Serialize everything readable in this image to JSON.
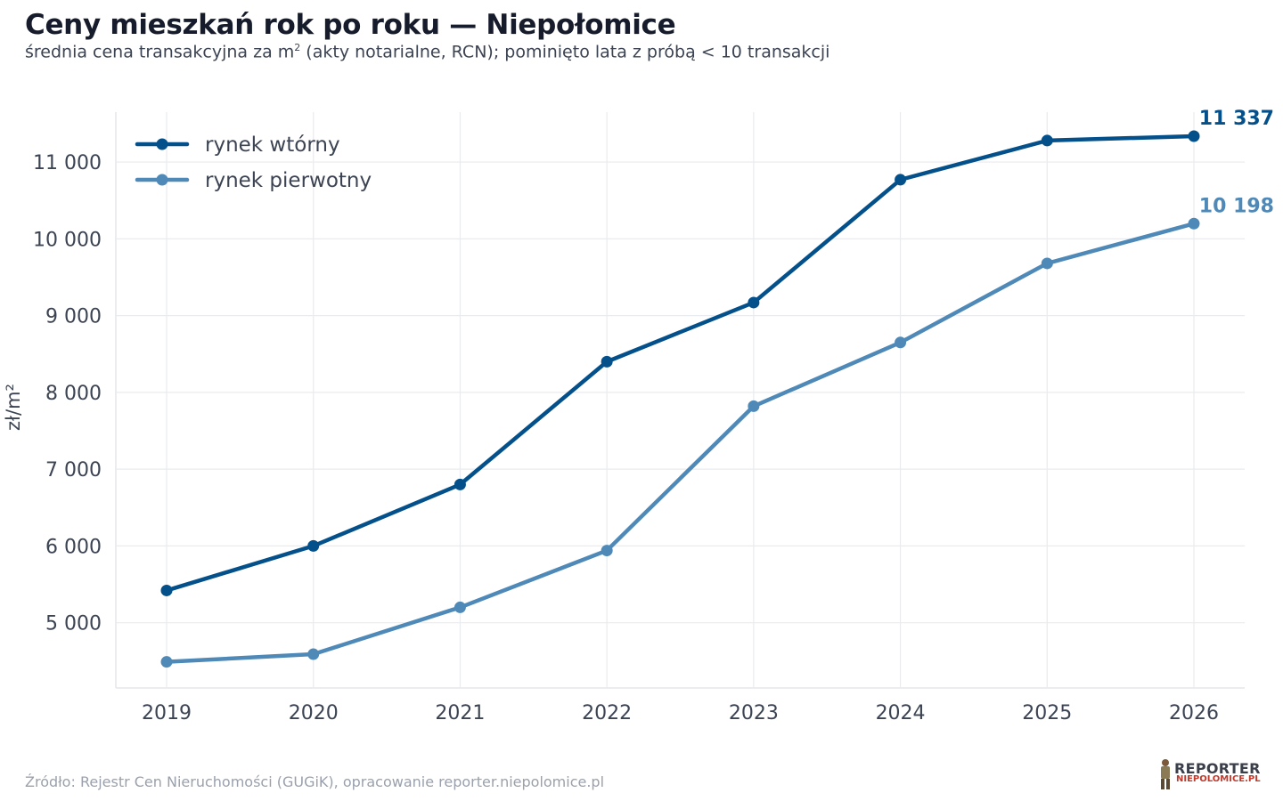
{
  "header": {
    "title": "Ceny mieszkań rok po roku — Niepołomice",
    "subtitle_before": "średnia cena transakcyjna za m",
    "subtitle_sup": "2",
    "subtitle_after": " (akty notarialne, RCN); pominięto lata z próbą < 10 transakcji"
  },
  "footer": {
    "source": "Źródło: Rejestr Cen Nieruchomości (GUGiK), opracowanie reporter.niepolomice.pl"
  },
  "logo": {
    "top": "REPORTER",
    "bottom": "NIEPOLOMICE.PL"
  },
  "chart_data": {
    "type": "line",
    "title": "Ceny mieszkań rok po roku — Niepołomice",
    "xlabel": "",
    "ylabel": "zł/m²",
    "categories": [
      "2019",
      "2020",
      "2021",
      "2022",
      "2023",
      "2024",
      "2025",
      "2026"
    ],
    "yticks": [
      5000,
      6000,
      7000,
      8000,
      9000,
      10000,
      11000
    ],
    "ytick_labels": [
      "5 000",
      "6 000",
      "7 000",
      "8 000",
      "9 000",
      "10 000",
      "11 000"
    ],
    "ylim": [
      4150,
      11650
    ],
    "grid": true,
    "legend_position": "top-left",
    "series": [
      {
        "name": "rynek wtórny",
        "color": "#03508b",
        "values": [
          5420,
          6000,
          6800,
          8400,
          9170,
          10770,
          11280,
          11337
        ],
        "end_label": "11 337"
      },
      {
        "name": "rynek pierwotny",
        "color": "#4e89b8",
        "values": [
          4490,
          4590,
          5200,
          5940,
          7820,
          8650,
          9680,
          10198
        ],
        "end_label": "10 198"
      }
    ]
  }
}
